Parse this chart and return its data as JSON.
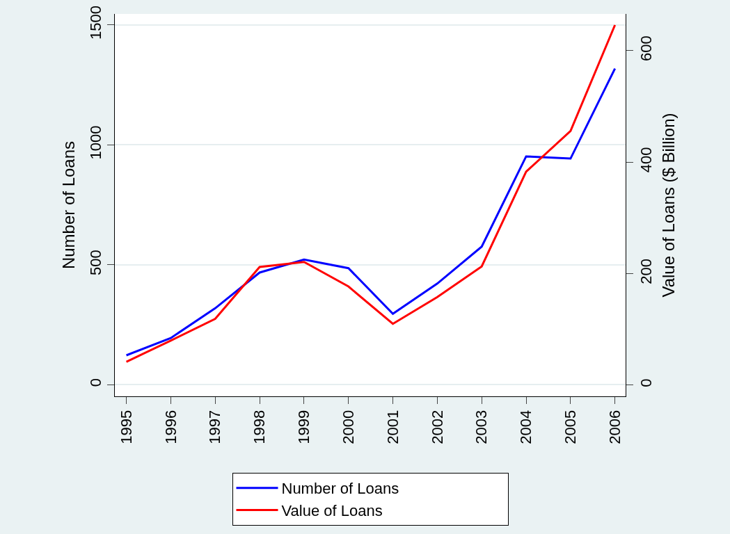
{
  "chart_data": {
    "type": "line",
    "ylabel": "Number of Loans",
    "y2label": "Value of Loans ($ Billion)",
    "x": [
      1995,
      1996,
      1997,
      1998,
      1999,
      2000,
      2001,
      2002,
      2003,
      2004,
      2005,
      2006
    ],
    "xlim": [
      1994.74,
      2006.24
    ],
    "xticks": [
      1995,
      1996,
      1997,
      1998,
      1999,
      2000,
      2001,
      2002,
      2003,
      2004,
      2005,
      2006
    ],
    "ylim": [
      -48,
      1546
    ],
    "yticks": [
      0,
      500,
      1000,
      1500
    ],
    "y2lim": [
      -20,
      666
    ],
    "y2ticks": [
      0,
      200,
      400,
      600
    ],
    "grid": "y",
    "legend": "bottom",
    "marker": "none",
    "line_style": "solid",
    "series": [
      {
        "name": "Number of Loans",
        "color": "#0000ff",
        "values": [
          123,
          195,
          319,
          468,
          522,
          486,
          296,
          422,
          576,
          952,
          943,
          1318
        ]
      },
      {
        "name": "Value of Loans",
        "color": "#ff0000",
        "axis": "y2",
        "values": [
          42,
          80,
          119,
          212,
          221,
          177,
          110,
          158,
          213,
          383,
          456,
          646
        ]
      }
    ]
  }
}
